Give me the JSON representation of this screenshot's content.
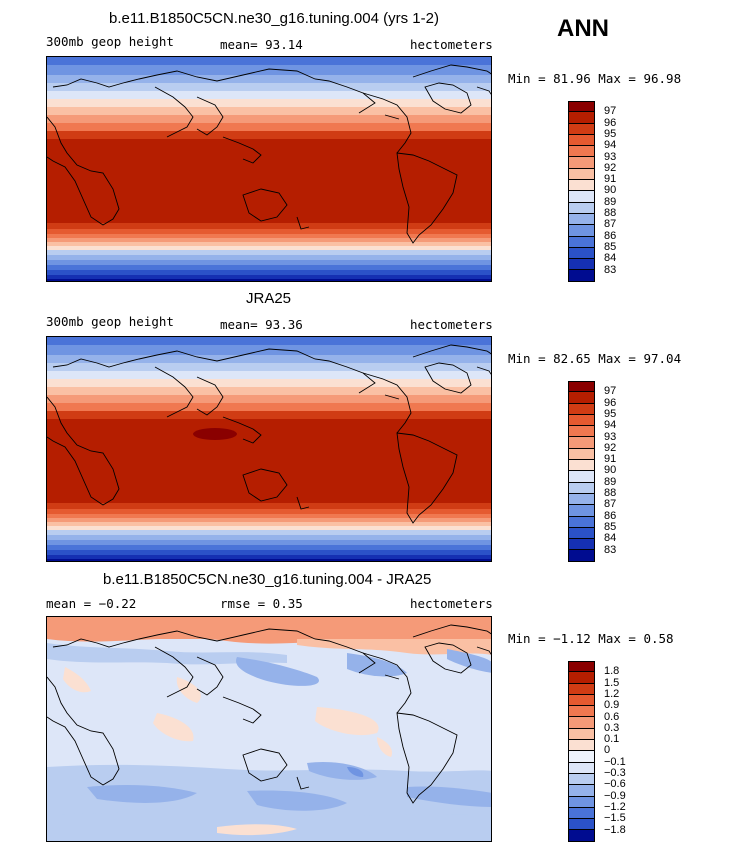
{
  "season": "ANN",
  "panels": [
    {
      "title": "b.e11.B1850C5CN.ne30_g16.tuning.004 (yrs 1-2)",
      "left_label": "300mb geop height",
      "mean_label": "mean=  93.14",
      "units": "hectometers",
      "minmax": "Min =  81.96 Max =  96.98",
      "levels": [
        "97",
        "96",
        "95",
        "94",
        "93",
        "92",
        "91",
        "90",
        "89",
        "88",
        "87",
        "86",
        "85",
        "84",
        "83"
      ]
    },
    {
      "title": "JRA25",
      "left_label": "300mb geop height",
      "mean_label": "mean=  93.36",
      "units": "hectometers",
      "minmax": "Min =  82.65 Max =  97.04",
      "levels": [
        "97",
        "96",
        "95",
        "94",
        "93",
        "92",
        "91",
        "90",
        "89",
        "88",
        "87",
        "86",
        "85",
        "84",
        "83"
      ]
    },
    {
      "title": "b.e11.B1850C5CN.ne30_g16.tuning.004 - JRA25",
      "left_label": "mean =  −0.22",
      "mean_label": "rmse =   0.35",
      "units": "hectometers",
      "minmax": "Min =  −1.12 Max =   0.58",
      "levels": [
        "1.8",
        "1.5",
        "1.2",
        "0.9",
        "0.6",
        "0.3",
        "0.1",
        "0",
        "−0.1",
        "−0.3",
        "−0.6",
        "−0.9",
        "−1.2",
        "−1.5",
        "−1.8"
      ]
    }
  ],
  "colors": {
    "abs_scale": [
      "#8a0000",
      "#b51e00",
      "#d03c14",
      "#e55a30",
      "#f07850",
      "#f59a78",
      "#fac0a4",
      "#fbe0d2",
      "#dde6f8",
      "#b9cdf0",
      "#95b2ea",
      "#6f94e2",
      "#4a73d8",
      "#2b52c8",
      "#1530b2",
      "#000c90"
    ],
    "diff_scale": [
      "#8a0000",
      "#b51e00",
      "#d03c14",
      "#e55a30",
      "#f07850",
      "#f59a78",
      "#fac0a4",
      "#fbe0d2",
      "#eef3fc",
      "#dde6f8",
      "#b9cdf0",
      "#95b2ea",
      "#6f94e2",
      "#4a73d8",
      "#2b52c8",
      "#000c90"
    ]
  }
}
